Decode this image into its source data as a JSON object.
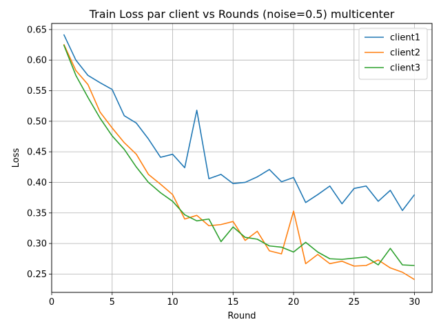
{
  "chart_data": {
    "type": "line",
    "title": "Train Loss par client vs Rounds (noise=0.5) multicenter",
    "xlabel": "Round",
    "ylabel": "Loss",
    "xlim": [
      0,
      31.45
    ],
    "ylim": [
      0.22,
      0.66
    ],
    "xticks": [
      0,
      5,
      10,
      15,
      20,
      25,
      30
    ],
    "yticks": [
      0.25,
      0.3,
      0.35,
      0.4,
      0.45,
      0.5,
      0.55,
      0.6,
      0.65
    ],
    "grid": true,
    "legend_position": "top-right",
    "x": [
      1,
      2,
      3,
      4,
      5,
      6,
      7,
      8,
      9,
      10,
      11,
      12,
      13,
      14,
      15,
      16,
      17,
      18,
      19,
      20,
      21,
      22,
      23,
      24,
      25,
      26,
      27,
      28,
      29,
      30
    ],
    "series": [
      {
        "name": "client1",
        "color": "#1f77b4",
        "values": [
          0.642,
          0.6,
          0.575,
          0.563,
          0.552,
          0.509,
          0.497,
          0.471,
          0.441,
          0.446,
          0.424,
          0.518,
          0.406,
          0.413,
          0.398,
          0.4,
          0.409,
          0.421,
          0.401,
          0.408,
          0.367,
          0.38,
          0.394,
          0.365,
          0.39,
          0.394,
          0.369,
          0.387,
          0.354,
          0.38
        ]
      },
      {
        "name": "client2",
        "color": "#ff7f0e",
        "values": [
          0.626,
          0.583,
          0.56,
          0.515,
          0.489,
          0.465,
          0.446,
          0.413,
          0.397,
          0.38,
          0.34,
          0.346,
          0.329,
          0.331,
          0.336,
          0.305,
          0.32,
          0.288,
          0.283,
          0.353,
          0.267,
          0.282,
          0.267,
          0.271,
          0.263,
          0.264,
          0.273,
          0.26,
          0.253,
          0.241
        ]
      },
      {
        "name": "client3",
        "color": "#2ca02c",
        "values": [
          0.625,
          0.575,
          0.539,
          0.505,
          0.476,
          0.454,
          0.425,
          0.4,
          0.383,
          0.369,
          0.347,
          0.337,
          0.34,
          0.303,
          0.327,
          0.31,
          0.307,
          0.296,
          0.294,
          0.286,
          0.302,
          0.286,
          0.275,
          0.274,
          0.276,
          0.278,
          0.265,
          0.292,
          0.265,
          0.264
        ]
      }
    ]
  }
}
